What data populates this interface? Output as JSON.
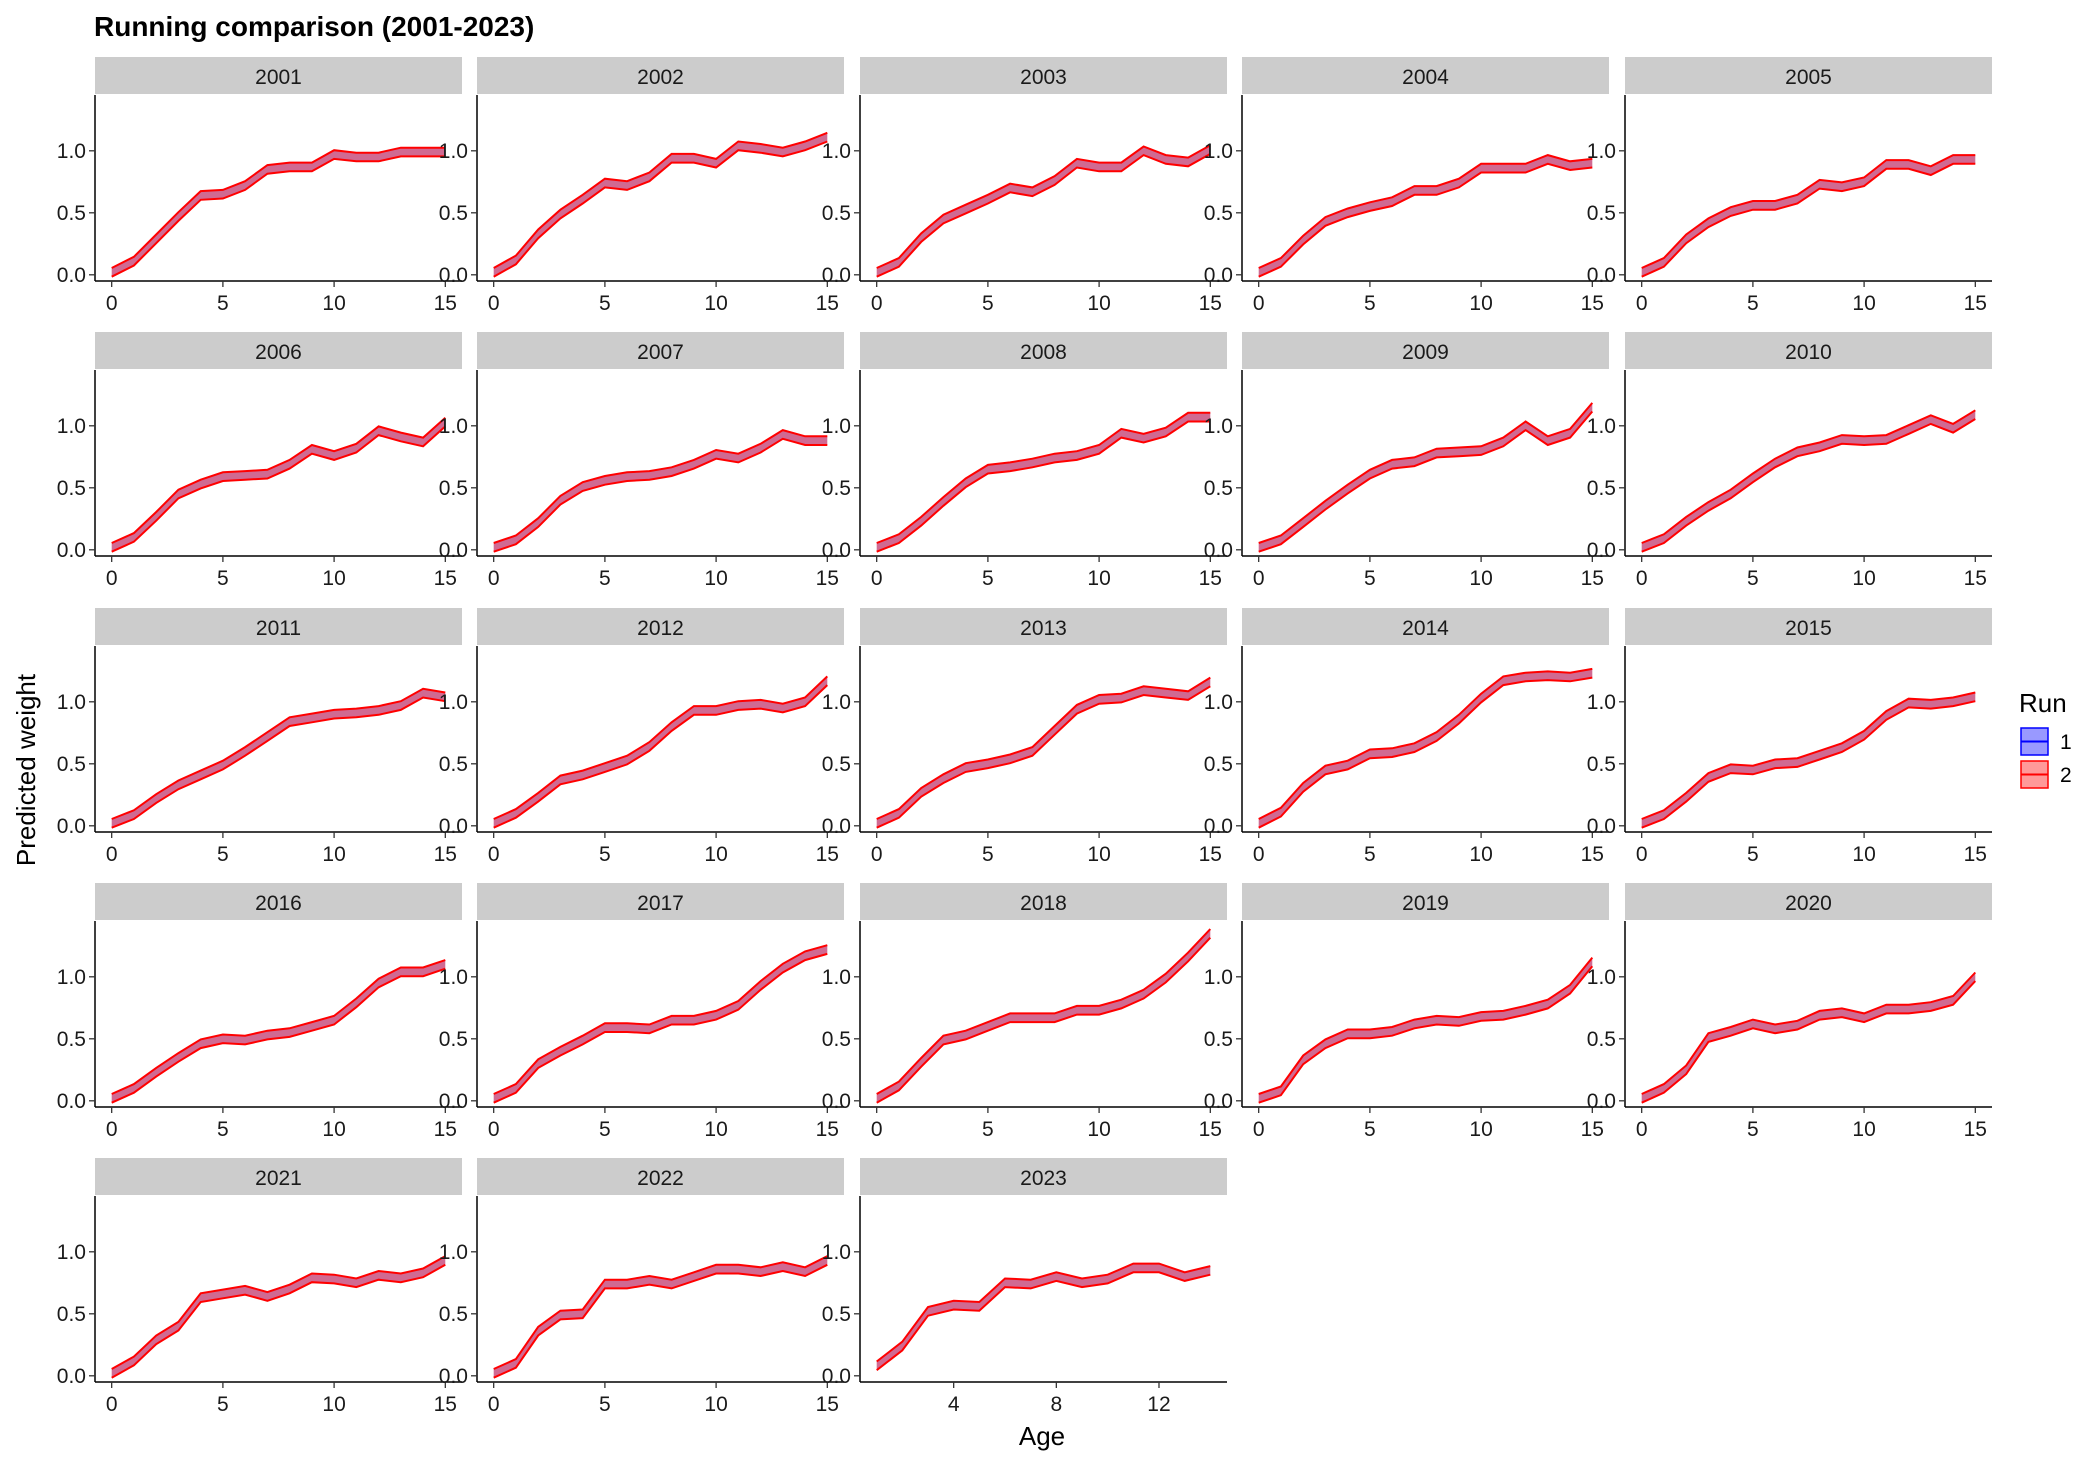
{
  "chart_data": {
    "type": "area",
    "title": "Running comparison (2001-2023)",
    "xlabel": "Age",
    "ylabel": "Predicted weight",
    "ylim": [
      -0.05,
      1.45
    ],
    "yticks": [
      0.0,
      0.5,
      1.0
    ],
    "ytick_labels": [
      "0.0",
      "0.5",
      "1.0"
    ],
    "grid": false,
    "legend": {
      "title": "Run",
      "placement": "right",
      "entries": [
        {
          "label": "1",
          "fill": "#9999ff",
          "stroke": "#0000ff"
        },
        {
          "label": "2",
          "fill": "#ff9999",
          "stroke": "#ff0000"
        }
      ]
    },
    "band_half_width": 0.035,
    "series_note_colors": {
      "line": "#ff0000",
      "band": "#c8507f"
    },
    "panels": [
      {
        "label": "2001",
        "x": [
          0,
          1,
          2,
          3,
          4,
          5,
          6,
          7,
          8,
          9,
          10,
          11,
          12,
          13,
          14,
          15
        ],
        "y": [
          0.02,
          0.11,
          0.29,
          0.47,
          0.64,
          0.65,
          0.72,
          0.85,
          0.87,
          0.87,
          0.97,
          0.95,
          0.95,
          0.99,
          0.99,
          0.99
        ],
        "xlim": [
          -0.75,
          15.75
        ],
        "xticks": [
          0,
          5,
          10,
          15
        ]
      },
      {
        "label": "2002",
        "x": [
          0,
          1,
          2,
          3,
          4,
          5,
          6,
          7,
          8,
          9,
          10,
          11,
          12,
          13,
          14,
          15
        ],
        "y": [
          0.02,
          0.12,
          0.33,
          0.49,
          0.61,
          0.74,
          0.72,
          0.79,
          0.94,
          0.94,
          0.9,
          1.04,
          1.02,
          0.99,
          1.04,
          1.11
        ],
        "xlim": [
          -0.75,
          15.75
        ],
        "xticks": [
          0,
          5,
          10,
          15
        ]
      },
      {
        "label": "2003",
        "x": [
          0,
          1,
          2,
          3,
          4,
          5,
          6,
          7,
          8,
          9,
          10,
          11,
          12,
          13,
          14,
          15
        ],
        "y": [
          0.02,
          0.1,
          0.3,
          0.45,
          0.53,
          0.61,
          0.7,
          0.67,
          0.76,
          0.9,
          0.87,
          0.87,
          1.0,
          0.93,
          0.91,
          1.01
        ],
        "xlim": [
          -0.75,
          15.75
        ],
        "xticks": [
          0,
          5,
          10,
          15
        ]
      },
      {
        "label": "2004",
        "x": [
          0,
          1,
          2,
          3,
          4,
          5,
          6,
          7,
          8,
          9,
          10,
          11,
          12,
          13,
          14,
          15
        ],
        "y": [
          0.02,
          0.1,
          0.28,
          0.43,
          0.5,
          0.55,
          0.59,
          0.68,
          0.68,
          0.74,
          0.86,
          0.86,
          0.86,
          0.93,
          0.88,
          0.9
        ],
        "xlim": [
          -0.75,
          15.75
        ],
        "xticks": [
          0,
          5,
          10,
          15
        ]
      },
      {
        "label": "2005",
        "x": [
          0,
          1,
          2,
          3,
          4,
          5,
          6,
          7,
          8,
          9,
          10,
          11,
          12,
          13,
          14,
          15
        ],
        "y": [
          0.02,
          0.1,
          0.29,
          0.42,
          0.51,
          0.56,
          0.56,
          0.61,
          0.73,
          0.71,
          0.75,
          0.89,
          0.89,
          0.84,
          0.93,
          0.93
        ],
        "xlim": [
          -0.75,
          15.75
        ],
        "xticks": [
          0,
          5,
          10,
          15
        ]
      },
      {
        "label": "2006",
        "x": [
          0,
          1,
          2,
          3,
          4,
          5,
          6,
          7,
          8,
          9,
          10,
          11,
          12,
          13,
          14,
          15
        ],
        "y": [
          0.02,
          0.1,
          0.27,
          0.45,
          0.53,
          0.59,
          0.6,
          0.61,
          0.69,
          0.81,
          0.76,
          0.82,
          0.96,
          0.91,
          0.87,
          1.03
        ],
        "xlim": [
          -0.75,
          15.75
        ],
        "xticks": [
          0,
          5,
          10,
          15
        ]
      },
      {
        "label": "2007",
        "x": [
          0,
          1,
          2,
          3,
          4,
          5,
          6,
          7,
          8,
          9,
          10,
          11,
          12,
          13,
          14,
          15
        ],
        "y": [
          0.02,
          0.08,
          0.22,
          0.4,
          0.51,
          0.56,
          0.59,
          0.6,
          0.63,
          0.69,
          0.77,
          0.74,
          0.82,
          0.93,
          0.88,
          0.88
        ],
        "xlim": [
          -0.75,
          15.75
        ],
        "xticks": [
          0,
          5,
          10,
          15
        ]
      },
      {
        "label": "2008",
        "x": [
          0,
          1,
          2,
          3,
          4,
          5,
          6,
          7,
          8,
          9,
          10,
          11,
          12,
          13,
          14,
          15
        ],
        "y": [
          0.02,
          0.09,
          0.23,
          0.39,
          0.54,
          0.65,
          0.67,
          0.7,
          0.74,
          0.76,
          0.81,
          0.94,
          0.9,
          0.95,
          1.07,
          1.07
        ],
        "xlim": [
          -0.75,
          15.75
        ],
        "xticks": [
          0,
          5,
          10,
          15
        ]
      },
      {
        "label": "2009",
        "x": [
          0,
          1,
          2,
          3,
          4,
          5,
          6,
          7,
          8,
          9,
          10,
          11,
          12,
          13,
          14,
          15
        ],
        "y": [
          0.02,
          0.08,
          0.22,
          0.36,
          0.49,
          0.61,
          0.69,
          0.71,
          0.78,
          0.79,
          0.8,
          0.87,
          1.0,
          0.88,
          0.94,
          1.15
        ],
        "xlim": [
          -0.75,
          15.75
        ],
        "xticks": [
          0,
          5,
          10,
          15
        ]
      },
      {
        "label": "2010",
        "x": [
          0,
          1,
          2,
          3,
          4,
          5,
          6,
          7,
          8,
          9,
          10,
          11,
          12,
          13,
          14,
          15
        ],
        "y": [
          0.02,
          0.09,
          0.23,
          0.35,
          0.45,
          0.58,
          0.7,
          0.79,
          0.83,
          0.89,
          0.88,
          0.89,
          0.97,
          1.05,
          0.98,
          1.09
        ],
        "xlim": [
          -0.75,
          15.75
        ],
        "xticks": [
          0,
          5,
          10,
          15
        ]
      },
      {
        "label": "2011",
        "x": [
          0,
          1,
          2,
          3,
          4,
          5,
          6,
          7,
          8,
          9,
          10,
          11,
          12,
          13,
          14,
          15
        ],
        "y": [
          0.02,
          0.09,
          0.22,
          0.33,
          0.41,
          0.49,
          0.6,
          0.72,
          0.84,
          0.87,
          0.9,
          0.91,
          0.93,
          0.97,
          1.07,
          1.04
        ],
        "xlim": [
          -0.75,
          15.75
        ],
        "xticks": [
          0,
          5,
          10,
          15
        ]
      },
      {
        "label": "2012",
        "x": [
          0,
          1,
          2,
          3,
          4,
          5,
          6,
          7,
          8,
          9,
          10,
          11,
          12,
          13,
          14,
          15
        ],
        "y": [
          0.02,
          0.1,
          0.23,
          0.37,
          0.41,
          0.47,
          0.53,
          0.64,
          0.8,
          0.93,
          0.93,
          0.97,
          0.98,
          0.95,
          1.0,
          1.17
        ],
        "xlim": [
          -0.75,
          15.75
        ],
        "xticks": [
          0,
          5,
          10,
          15
        ]
      },
      {
        "label": "2013",
        "x": [
          0,
          1,
          2,
          3,
          4,
          5,
          6,
          7,
          8,
          9,
          10,
          11,
          12,
          13,
          14,
          15
        ],
        "y": [
          0.02,
          0.1,
          0.27,
          0.38,
          0.47,
          0.5,
          0.54,
          0.6,
          0.77,
          0.94,
          1.02,
          1.03,
          1.09,
          1.07,
          1.05,
          1.16
        ],
        "xlim": [
          -0.75,
          15.75
        ],
        "xticks": [
          0,
          5,
          10,
          15
        ]
      },
      {
        "label": "2014",
        "x": [
          0,
          1,
          2,
          3,
          4,
          5,
          6,
          7,
          8,
          9,
          10,
          11,
          12,
          13,
          14,
          15
        ],
        "y": [
          0.02,
          0.11,
          0.31,
          0.45,
          0.49,
          0.58,
          0.59,
          0.63,
          0.72,
          0.86,
          1.03,
          1.17,
          1.2,
          1.21,
          1.2,
          1.23
        ],
        "xlim": [
          -0.75,
          15.75
        ],
        "xticks": [
          0,
          5,
          10,
          15
        ]
      },
      {
        "label": "2015",
        "x": [
          0,
          1,
          2,
          3,
          4,
          5,
          6,
          7,
          8,
          9,
          10,
          11,
          12,
          13,
          14,
          15
        ],
        "y": [
          0.02,
          0.09,
          0.23,
          0.39,
          0.46,
          0.45,
          0.5,
          0.51,
          0.57,
          0.63,
          0.73,
          0.89,
          0.99,
          0.98,
          1.0,
          1.04
        ],
        "xlim": [
          -0.75,
          15.75
        ],
        "xticks": [
          0,
          5,
          10,
          15
        ]
      },
      {
        "label": "2016",
        "x": [
          0,
          1,
          2,
          3,
          4,
          5,
          6,
          7,
          8,
          9,
          10,
          11,
          12,
          13,
          14,
          15
        ],
        "y": [
          0.02,
          0.1,
          0.23,
          0.35,
          0.46,
          0.5,
          0.49,
          0.53,
          0.55,
          0.6,
          0.65,
          0.79,
          0.95,
          1.04,
          1.04,
          1.1
        ],
        "xlim": [
          -0.75,
          15.75
        ],
        "xticks": [
          0,
          5,
          10,
          15
        ]
      },
      {
        "label": "2017",
        "x": [
          0,
          1,
          2,
          3,
          4,
          5,
          6,
          7,
          8,
          9,
          10,
          11,
          12,
          13,
          14,
          15
        ],
        "y": [
          0.02,
          0.1,
          0.3,
          0.4,
          0.49,
          0.59,
          0.59,
          0.58,
          0.65,
          0.65,
          0.69,
          0.77,
          0.93,
          1.07,
          1.17,
          1.22
        ],
        "xlim": [
          -0.75,
          15.75
        ],
        "xticks": [
          0,
          5,
          10,
          15
        ]
      },
      {
        "label": "2018",
        "x": [
          0,
          1,
          2,
          3,
          4,
          5,
          6,
          7,
          8,
          9,
          10,
          11,
          12,
          13,
          14,
          15
        ],
        "y": [
          0.02,
          0.12,
          0.31,
          0.49,
          0.53,
          0.6,
          0.67,
          0.67,
          0.67,
          0.73,
          0.73,
          0.78,
          0.86,
          0.99,
          1.16,
          1.35
        ],
        "xlim": [
          -0.75,
          15.75
        ],
        "xticks": [
          0,
          5,
          10,
          15
        ]
      },
      {
        "label": "2019",
        "x": [
          0,
          1,
          2,
          3,
          4,
          5,
          6,
          7,
          8,
          9,
          10,
          11,
          12,
          13,
          14,
          15
        ],
        "y": [
          0.02,
          0.08,
          0.33,
          0.46,
          0.54,
          0.54,
          0.56,
          0.62,
          0.65,
          0.64,
          0.68,
          0.69,
          0.73,
          0.78,
          0.9,
          1.12
        ],
        "xlim": [
          -0.75,
          15.75
        ],
        "xticks": [
          0,
          5,
          10,
          15
        ]
      },
      {
        "label": "2020",
        "x": [
          0,
          1,
          2,
          3,
          4,
          5,
          6,
          7,
          8,
          9,
          10,
          11,
          12,
          13,
          14,
          15
        ],
        "y": [
          0.02,
          0.1,
          0.25,
          0.51,
          0.56,
          0.62,
          0.58,
          0.61,
          0.69,
          0.71,
          0.67,
          0.74,
          0.74,
          0.76,
          0.81,
          1.0
        ],
        "xlim": [
          -0.75,
          15.75
        ],
        "xticks": [
          0,
          5,
          10,
          15
        ]
      },
      {
        "label": "2021",
        "x": [
          0,
          1,
          2,
          3,
          4,
          5,
          6,
          7,
          8,
          9,
          10,
          11,
          12,
          13,
          14,
          15
        ],
        "y": [
          0.02,
          0.12,
          0.29,
          0.4,
          0.63,
          0.66,
          0.69,
          0.64,
          0.7,
          0.79,
          0.78,
          0.75,
          0.81,
          0.79,
          0.83,
          0.93
        ],
        "xlim": [
          -0.75,
          15.75
        ],
        "xticks": [
          0,
          5,
          10,
          15
        ]
      },
      {
        "label": "2022",
        "x": [
          0,
          1,
          2,
          3,
          4,
          5,
          6,
          7,
          8,
          9,
          10,
          11,
          12,
          13,
          14,
          15
        ],
        "y": [
          0.02,
          0.1,
          0.36,
          0.49,
          0.5,
          0.74,
          0.74,
          0.77,
          0.74,
          0.8,
          0.86,
          0.86,
          0.84,
          0.88,
          0.84,
          0.93
        ],
        "xlim": [
          -0.75,
          15.75
        ],
        "xticks": [
          0,
          5,
          10,
          15
        ]
      },
      {
        "label": "2023",
        "x": [
          1,
          2,
          3,
          4,
          5,
          6,
          7,
          8,
          9,
          10,
          11,
          12,
          13,
          14
        ],
        "y": [
          0.08,
          0.24,
          0.52,
          0.57,
          0.56,
          0.75,
          0.74,
          0.8,
          0.75,
          0.78,
          0.87,
          0.87,
          0.8,
          0.85
        ],
        "xlim": [
          0.35,
          14.65
        ],
        "xticks": [
          4,
          8,
          12
        ]
      }
    ]
  }
}
